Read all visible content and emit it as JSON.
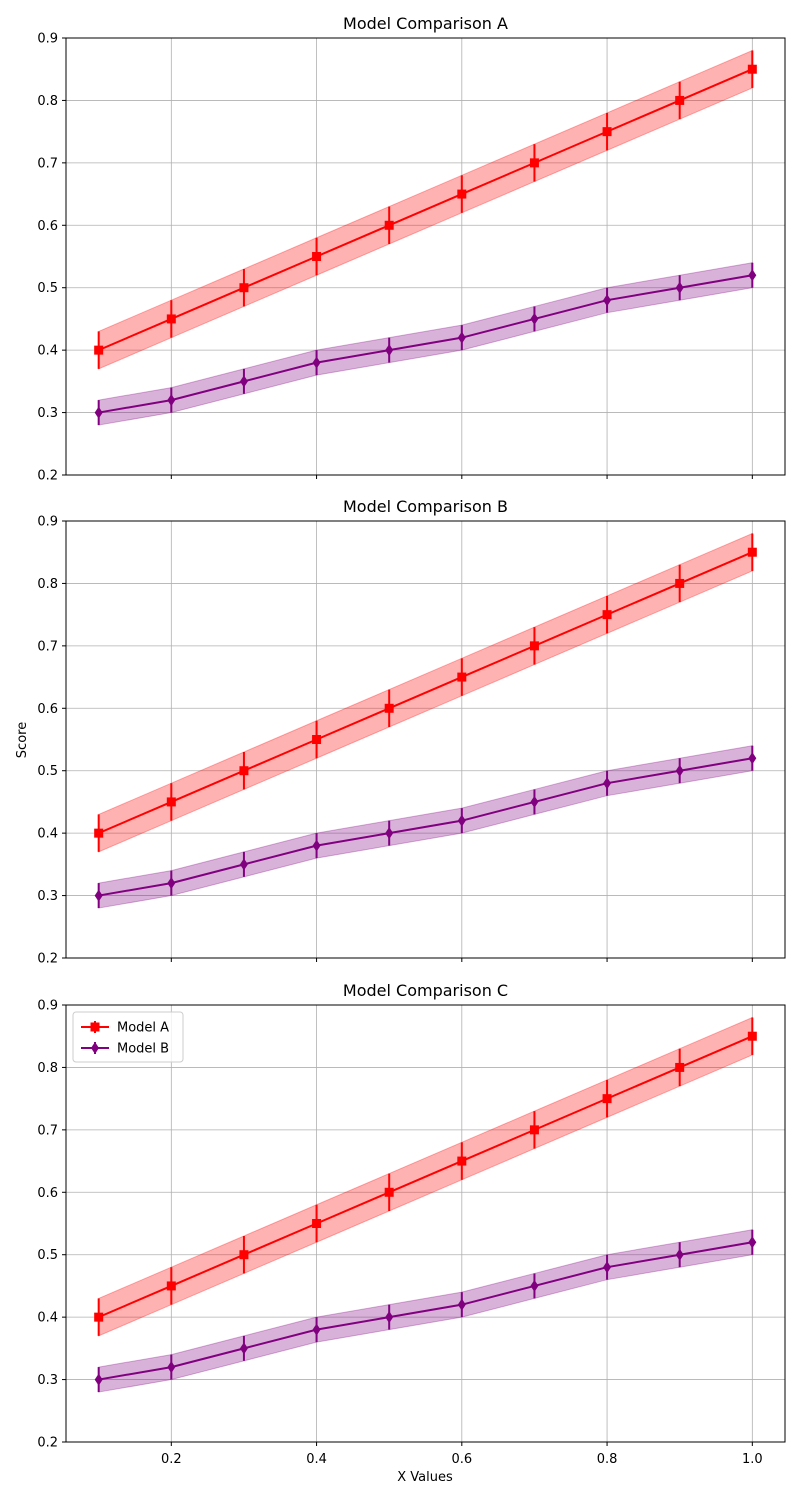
{
  "chart_data": {
    "type": "line",
    "shared_x_label": "X Values",
    "shared_y_label": "Score",
    "x": [
      0.1,
      0.2,
      0.3,
      0.4,
      0.5,
      0.6,
      0.7,
      0.8,
      0.9,
      1.0
    ],
    "x_ticks": [
      "0.2",
      "0.4",
      "0.6",
      "0.8",
      "1.0"
    ],
    "x_tick_values": [
      0.2,
      0.4,
      0.6,
      0.8,
      1.0
    ],
    "xlim": [
      0.055,
      1.045
    ],
    "ylim": [
      0.2,
      0.9
    ],
    "y_ticks": [
      "0.2",
      "0.3",
      "0.4",
      "0.5",
      "0.6",
      "0.7",
      "0.8",
      "0.9"
    ],
    "y_tick_values": [
      0.2,
      0.3,
      0.4,
      0.5,
      0.6,
      0.7,
      0.8,
      0.9
    ],
    "grid": true,
    "legend": {
      "placement": "upper-left",
      "entries": [
        "Model A",
        "Model B"
      ]
    },
    "series": [
      {
        "name": "Model A",
        "color": "#ff0000",
        "marker": "square",
        "values": [
          0.4,
          0.45,
          0.5,
          0.55,
          0.6,
          0.65,
          0.7,
          0.75,
          0.8,
          0.85
        ],
        "error": [
          0.03,
          0.03,
          0.03,
          0.03,
          0.03,
          0.03,
          0.03,
          0.03,
          0.03,
          0.03
        ]
      },
      {
        "name": "Model B",
        "color": "#800080",
        "marker": "diamond",
        "values": [
          0.3,
          0.32,
          0.35,
          0.38,
          0.4,
          0.42,
          0.45,
          0.48,
          0.5,
          0.52
        ],
        "error": [
          0.02,
          0.02,
          0.02,
          0.02,
          0.02,
          0.02,
          0.02,
          0.02,
          0.02,
          0.02
        ]
      }
    ],
    "panels": [
      {
        "title": "Model Comparison A",
        "legend": false
      },
      {
        "title": "Model Comparison B",
        "legend": false
      },
      {
        "title": "Model Comparison C",
        "legend": true
      }
    ]
  }
}
